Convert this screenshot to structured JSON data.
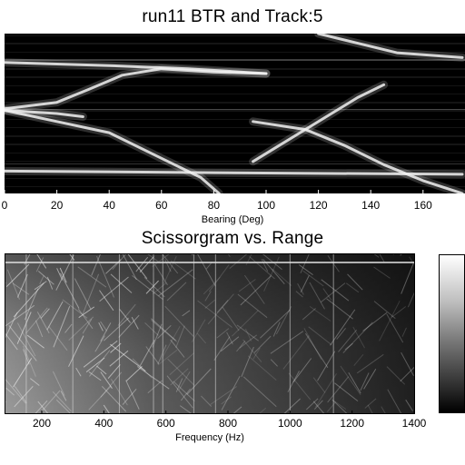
{
  "chart_data": [
    {
      "type": "heatmap",
      "title": "run11 BTR and Track:5",
      "xlabel": "Bearing (Deg)",
      "ylabel": "",
      "xlim": [
        0,
        175
      ],
      "x_ticks": [
        0,
        20,
        40,
        60,
        80,
        100,
        120,
        140,
        160
      ],
      "colormap": "gray",
      "tracks": [
        {
          "points": [
            [
              0,
              0.18
            ],
            [
              40,
              0.2
            ],
            [
              70,
              0.22
            ],
            [
              90,
              0.24
            ],
            [
              100,
              0.25
            ]
          ]
        },
        {
          "points": [
            [
              0,
              0.47
            ],
            [
              20,
              0.43
            ],
            [
              32,
              0.35
            ],
            [
              45,
              0.26
            ],
            [
              60,
              0.22
            ],
            [
              80,
              0.24
            ],
            [
              100,
              0.25
            ]
          ]
        },
        {
          "points": [
            [
              0,
              0.48
            ],
            [
              20,
              0.55
            ],
            [
              40,
              0.62
            ],
            [
              60,
              0.78
            ],
            [
              75,
              0.9
            ],
            [
              82,
              1.0
            ]
          ]
        },
        {
          "points": [
            [
              0,
              0.48
            ],
            [
              20,
              0.5
            ],
            [
              30,
              0.52
            ]
          ]
        },
        {
          "points": [
            [
              95,
              0.55
            ],
            [
              115,
              0.6
            ],
            [
              130,
              0.7
            ],
            [
              145,
              0.82
            ],
            [
              160,
              0.92
            ],
            [
              175,
              1.0
            ]
          ]
        },
        {
          "points": [
            [
              120,
              0.0
            ],
            [
              135,
              0.06
            ],
            [
              150,
              0.12
            ],
            [
              175,
              0.15
            ]
          ]
        },
        {
          "points": [
            [
              0,
              0.86
            ],
            [
              80,
              0.87
            ],
            [
              175,
              0.88
            ]
          ]
        },
        {
          "points": [
            [
              95,
              0.8
            ],
            [
              105,
              0.7
            ],
            [
              115,
              0.6
            ],
            [
              125,
              0.5
            ],
            [
              135,
              0.4
            ],
            [
              145,
              0.32
            ]
          ]
        }
      ]
    },
    {
      "type": "heatmap",
      "title": "Scissorgram vs. Range",
      "xlabel": "Frequency (Hz)",
      "ylabel": "",
      "xlim": [
        75,
        1400
      ],
      "x_ticks": [
        200,
        400,
        600,
        800,
        1000,
        1200,
        1400
      ],
      "colormap": "gray",
      "vertical_lines_hz": [
        150,
        300,
        450,
        560,
        590,
        690,
        760,
        1000,
        1140
      ],
      "colorbar": {
        "position": "right",
        "colormap": "gray"
      }
    }
  ]
}
